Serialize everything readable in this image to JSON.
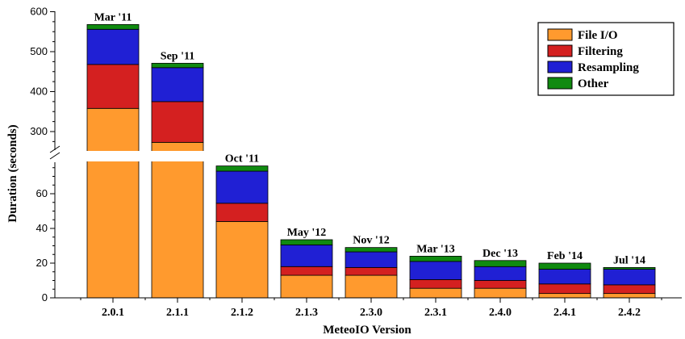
{
  "chart_data": {
    "type": "bar",
    "stacked": true,
    "title": "",
    "xlabel": "MeteoIO Version",
    "ylabel": "Duration (seconds)",
    "categories": [
      "2.0.1",
      "2.1.1",
      "2.1.2",
      "2.1.3",
      "2.3.0",
      "2.3.1",
      "2.4.0",
      "2.4.1",
      "2.4.2"
    ],
    "bar_labels": [
      "Mar '11",
      "Sep '11",
      "Oct '11",
      "May '12",
      "Nov '12",
      "Mar '13",
      "Dec '13",
      "Feb '14",
      "Jul '14"
    ],
    "series": [
      {
        "name": "File I/O",
        "color": "#ff9a2e",
        "values": [
          358,
          273,
          44,
          13,
          13,
          5.5,
          5.5,
          2.5,
          2.5
        ]
      },
      {
        "name": "Filtering",
        "color": "#d42020",
        "values": [
          110,
          102,
          10.5,
          5,
          4.5,
          5,
          4.5,
          5.5,
          5
        ]
      },
      {
        "name": "Resampling",
        "color": "#2020d4",
        "values": [
          88,
          85,
          18.5,
          12.5,
          9,
          10.5,
          8,
          8.5,
          9
        ]
      },
      {
        "name": "Other",
        "color": "#108a10",
        "values": [
          12,
          11,
          3,
          3,
          2.5,
          3,
          3.5,
          3.5,
          1
        ]
      }
    ],
    "y_axis_break": true,
    "y_segments": [
      {
        "ylim": [
          0,
          78
        ],
        "ticks": [
          0,
          20,
          40,
          60
        ]
      },
      {
        "ylim": [
          250,
          600
        ],
        "ticks": [
          300,
          400,
          500,
          600
        ]
      }
    ],
    "legend_position": "top-right",
    "grid": false
  }
}
